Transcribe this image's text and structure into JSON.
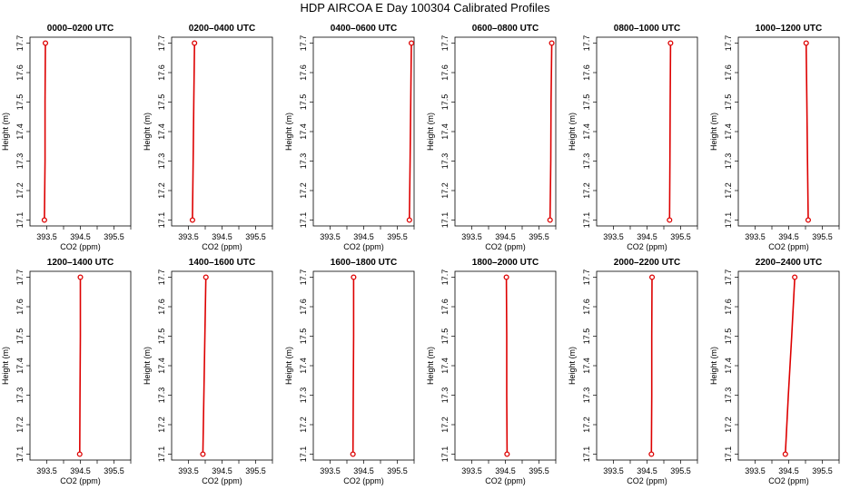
{
  "figure": {
    "title": "HDP AIRCOA E  Day 100304  Calibrated Profiles"
  },
  "colors": {
    "profile": "#dd0000",
    "frame": "#000000"
  },
  "chart_data": [
    {
      "type": "line",
      "title": "0000–0200 UTC",
      "xlabel": "CO2 (ppm)",
      "ylabel": "Height (m)",
      "xlim": [
        393.0,
        396.0
      ],
      "ylim": [
        17.08,
        17.72
      ],
      "xticks": [
        "393.5",
        "394.5",
        "395.5"
      ],
      "yticks": [
        "17.1",
        "17.2",
        "17.3",
        "17.4",
        "17.5",
        "17.6",
        "17.7"
      ],
      "points": [
        {
          "x": 393.43,
          "y": 17.1
        },
        {
          "x": 393.46,
          "y": 17.7
        }
      ],
      "series": [
        {
          "x": [
            393.43,
            393.45,
            393.45,
            393.46
          ],
          "y": [
            17.1,
            17.3,
            17.5,
            17.7
          ]
        }
      ]
    },
    {
      "type": "line",
      "title": "0200–0400 UTC",
      "xlabel": "CO2 (ppm)",
      "ylabel": "Height (m)",
      "xlim": [
        393.0,
        396.0
      ],
      "ylim": [
        17.08,
        17.72
      ],
      "xticks": [
        "393.5",
        "394.5",
        "395.5"
      ],
      "yticks": [
        "17.1",
        "17.2",
        "17.3",
        "17.4",
        "17.5",
        "17.6",
        "17.7"
      ],
      "points": [
        {
          "x": 393.62,
          "y": 17.1
        },
        {
          "x": 393.68,
          "y": 17.7
        }
      ],
      "series": [
        {
          "x": [
            393.62,
            393.64,
            393.66,
            393.68
          ],
          "y": [
            17.1,
            17.3,
            17.5,
            17.7
          ]
        }
      ]
    },
    {
      "type": "line",
      "title": "0400–0600 UTC",
      "xlabel": "CO2 (ppm)",
      "ylabel": "Height (m)",
      "xlim": [
        393.0,
        396.0
      ],
      "ylim": [
        17.08,
        17.72
      ],
      "xticks": [
        "393.5",
        "394.5",
        "395.5"
      ],
      "yticks": [
        "17.1",
        "17.2",
        "17.3",
        "17.4",
        "17.5",
        "17.6",
        "17.7"
      ],
      "points": [
        {
          "x": 395.86,
          "y": 17.1
        },
        {
          "x": 395.92,
          "y": 17.7
        }
      ],
      "series": [
        {
          "x": [
            395.86,
            395.88,
            395.9,
            395.92
          ],
          "y": [
            17.1,
            17.3,
            17.5,
            17.7
          ]
        }
      ]
    },
    {
      "type": "line",
      "title": "0600–0800 UTC",
      "xlabel": "CO2 (ppm)",
      "ylabel": "Height (m)",
      "xlim": [
        393.0,
        396.0
      ],
      "ylim": [
        17.08,
        17.72
      ],
      "xticks": [
        "393.5",
        "394.5",
        "395.5"
      ],
      "yticks": [
        "17.1",
        "17.2",
        "17.3",
        "17.4",
        "17.5",
        "17.6",
        "17.7"
      ],
      "points": [
        {
          "x": 395.83,
          "y": 17.1
        },
        {
          "x": 395.88,
          "y": 17.7
        }
      ],
      "series": [
        {
          "x": [
            395.83,
            395.85,
            395.86,
            395.88
          ],
          "y": [
            17.1,
            17.3,
            17.5,
            17.7
          ]
        }
      ]
    },
    {
      "type": "line",
      "title": "0800–1000 UTC",
      "xlabel": "CO2 (ppm)",
      "ylabel": "Height (m)",
      "xlim": [
        393.0,
        396.0
      ],
      "ylim": [
        17.08,
        17.72
      ],
      "xticks": [
        "393.5",
        "394.5",
        "395.5"
      ],
      "yticks": [
        "17.1",
        "17.2",
        "17.3",
        "17.4",
        "17.5",
        "17.6",
        "17.7"
      ],
      "points": [
        {
          "x": 395.17,
          "y": 17.1
        },
        {
          "x": 395.2,
          "y": 17.7
        }
      ],
      "series": [
        {
          "x": [
            395.17,
            395.18,
            395.19,
            395.2
          ],
          "y": [
            17.1,
            17.3,
            17.5,
            17.7
          ]
        }
      ]
    },
    {
      "type": "line",
      "title": "1000–1200 UTC",
      "xlabel": "CO2 (ppm)",
      "ylabel": "Height (m)",
      "xlim": [
        393.0,
        396.0
      ],
      "ylim": [
        17.08,
        17.72
      ],
      "xticks": [
        "393.5",
        "394.5",
        "395.5"
      ],
      "yticks": [
        "17.1",
        "17.2",
        "17.3",
        "17.4",
        "17.5",
        "17.6",
        "17.7"
      ],
      "points": [
        {
          "x": 395.08,
          "y": 17.1
        },
        {
          "x": 395.02,
          "y": 17.7
        }
      ],
      "series": [
        {
          "x": [
            395.08,
            395.06,
            395.04,
            395.02
          ],
          "y": [
            17.1,
            17.3,
            17.5,
            17.7
          ]
        }
      ]
    },
    {
      "type": "line",
      "title": "1200–1400 UTC",
      "xlabel": "CO2 (ppm)",
      "ylabel": "Height (m)",
      "xlim": [
        393.0,
        396.0
      ],
      "ylim": [
        17.08,
        17.72
      ],
      "xticks": [
        "393.5",
        "394.5",
        "395.5"
      ],
      "yticks": [
        "17.1",
        "17.2",
        "17.3",
        "17.4",
        "17.5",
        "17.6",
        "17.7"
      ],
      "points": [
        {
          "x": 394.48,
          "y": 17.1
        },
        {
          "x": 394.5,
          "y": 17.7
        }
      ],
      "series": [
        {
          "x": [
            394.48,
            394.49,
            394.5,
            394.5
          ],
          "y": [
            17.1,
            17.3,
            17.5,
            17.7
          ]
        }
      ]
    },
    {
      "type": "line",
      "title": "1400–1600 UTC",
      "xlabel": "CO2 (ppm)",
      "ylabel": "Height (m)",
      "xlim": [
        393.0,
        396.0
      ],
      "ylim": [
        17.08,
        17.72
      ],
      "xticks": [
        "393.5",
        "394.5",
        "395.5"
      ],
      "yticks": [
        "17.1",
        "17.2",
        "17.3",
        "17.4",
        "17.5",
        "17.6",
        "17.7"
      ],
      "points": [
        {
          "x": 393.93,
          "y": 17.1
        },
        {
          "x": 394.02,
          "y": 17.7
        }
      ],
      "series": [
        {
          "x": [
            393.93,
            393.96,
            393.99,
            394.02
          ],
          "y": [
            17.1,
            17.3,
            17.5,
            17.7
          ]
        }
      ]
    },
    {
      "type": "line",
      "title": "1600–1800 UTC",
      "xlabel": "CO2 (ppm)",
      "ylabel": "Height (m)",
      "xlim": [
        393.0,
        396.0
      ],
      "ylim": [
        17.08,
        17.72
      ],
      "xticks": [
        "393.5",
        "394.5",
        "395.5"
      ],
      "yticks": [
        "17.1",
        "17.2",
        "17.3",
        "17.4",
        "17.5",
        "17.6",
        "17.7"
      ],
      "points": [
        {
          "x": 394.18,
          "y": 17.1
        },
        {
          "x": 394.2,
          "y": 17.7
        }
      ],
      "series": [
        {
          "x": [
            394.18,
            394.19,
            394.2,
            394.2
          ],
          "y": [
            17.1,
            17.3,
            17.5,
            17.7
          ]
        }
      ]
    },
    {
      "type": "line",
      "title": "1800–2000 UTC",
      "xlabel": "CO2 (ppm)",
      "ylabel": "Height (m)",
      "xlim": [
        393.0,
        396.0
      ],
      "ylim": [
        17.08,
        17.72
      ],
      "xticks": [
        "393.5",
        "394.5",
        "395.5"
      ],
      "yticks": [
        "17.1",
        "17.2",
        "17.3",
        "17.4",
        "17.5",
        "17.6",
        "17.7"
      ],
      "points": [
        {
          "x": 394.55,
          "y": 17.1
        },
        {
          "x": 394.53,
          "y": 17.7
        }
      ],
      "series": [
        {
          "x": [
            394.55,
            394.54,
            394.54,
            394.53
          ],
          "y": [
            17.1,
            17.3,
            17.5,
            17.7
          ]
        }
      ]
    },
    {
      "type": "line",
      "title": "2000–2200 UTC",
      "xlabel": "CO2 (ppm)",
      "ylabel": "Height (m)",
      "xlim": [
        393.0,
        396.0
      ],
      "ylim": [
        17.08,
        17.72
      ],
      "xticks": [
        "393.5",
        "394.5",
        "395.5"
      ],
      "yticks": [
        "17.1",
        "17.2",
        "17.3",
        "17.4",
        "17.5",
        "17.6",
        "17.7"
      ],
      "points": [
        {
          "x": 394.63,
          "y": 17.1
        },
        {
          "x": 394.65,
          "y": 17.7
        }
      ],
      "series": [
        {
          "x": [
            394.63,
            394.64,
            394.64,
            394.65
          ],
          "y": [
            17.1,
            17.3,
            17.5,
            17.7
          ]
        }
      ]
    },
    {
      "type": "line",
      "title": "2200–2400 UTC",
      "xlabel": "CO2 (ppm)",
      "ylabel": "Height (m)",
      "xlim": [
        393.0,
        396.0
      ],
      "ylim": [
        17.08,
        17.72
      ],
      "xticks": [
        "393.5",
        "394.5",
        "395.5"
      ],
      "yticks": [
        "17.1",
        "17.2",
        "17.3",
        "17.4",
        "17.5",
        "17.6",
        "17.7"
      ],
      "points": [
        {
          "x": 394.4,
          "y": 17.1
        },
        {
          "x": 394.68,
          "y": 17.7
        }
      ],
      "series": [
        {
          "x": [
            394.4,
            394.49,
            394.59,
            394.68
          ],
          "y": [
            17.1,
            17.3,
            17.5,
            17.7
          ]
        }
      ]
    }
  ]
}
